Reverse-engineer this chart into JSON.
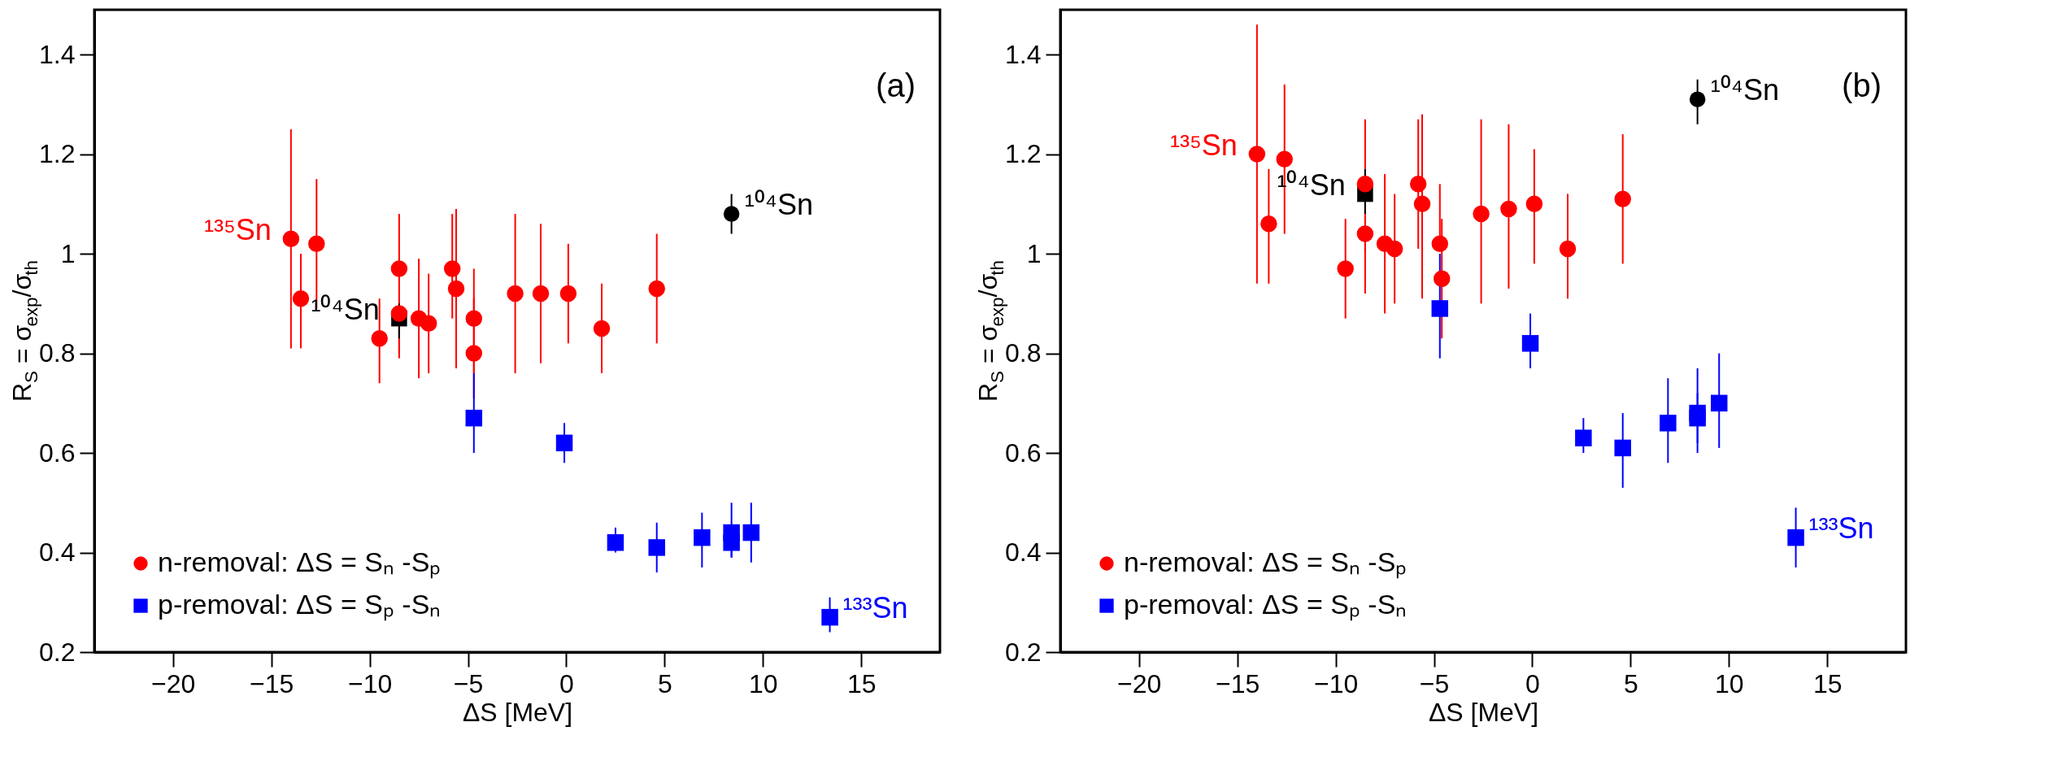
{
  "chart_data": [
    {
      "type": "scatter",
      "xlabel": "ΔS [MeV]",
      "ylabel": "R$_{S}$ = σ$_{exp}$/σ$_{th}$",
      "xlim": [
        -24,
        19
      ],
      "ylim": [
        0.2,
        1.49
      ],
      "legend": "bottom left",
      "xticks": [
        -20,
        -15,
        -10,
        -5,
        0,
        5,
        10,
        15
      ],
      "yticks": [
        0.2,
        0.4,
        0.6,
        0.8,
        1,
        1.2,
        1.4
      ],
      "series": [
        {
          "name": "n-removal: ΔS = Sₙ -Sₚ",
          "color": "#ff0000",
          "marker": "circle",
          "x": [
            -14.0,
            -13.5,
            -12.7,
            -9.5,
            -8.5,
            -8.5,
            -7.5,
            -7.0,
            -5.8,
            -5.6,
            -4.7,
            -4.7,
            -2.6,
            -1.3,
            0.1,
            1.8,
            4.6
          ],
          "values": [
            1.03,
            0.91,
            1.02,
            0.83,
            0.97,
            0.88,
            0.87,
            0.86,
            0.97,
            0.93,
            0.87,
            0.8,
            0.92,
            0.92,
            0.92,
            0.85,
            0.93
          ],
          "errors": [
            [
              0.81,
              1.25
            ],
            [
              0.81,
              1.0
            ],
            [
              0.89,
              1.15
            ],
            [
              0.74,
              0.91
            ],
            [
              0.79,
              1.08
            ],
            [
              0.8,
              0.88
            ],
            [
              0.75,
              0.99
            ],
            [
              0.76,
              0.96
            ],
            [
              0.87,
              1.08
            ],
            [
              0.77,
              1.09
            ],
            [
              0.76,
              0.97
            ],
            [
              0.71,
              0.91
            ],
            [
              0.76,
              1.08
            ],
            [
              0.78,
              1.06
            ],
            [
              0.82,
              1.02
            ],
            [
              0.76,
              0.94
            ],
            [
              0.82,
              1.04
            ]
          ]
        },
        {
          "name": "p-removal: ΔS = Sₚ -Sₙ",
          "color": "#0000ff",
          "marker": "square",
          "x": [
            -4.7,
            -0.1,
            2.5,
            4.6,
            6.9,
            8.4,
            8.4,
            9.4,
            13.4
          ],
          "values": [
            0.67,
            0.62,
            0.42,
            0.41,
            0.43,
            0.44,
            0.42,
            0.44,
            0.27
          ],
          "errors": [
            [
              0.6,
              0.76
            ],
            [
              0.58,
              0.66
            ],
            [
              0.4,
              0.45
            ],
            [
              0.36,
              0.46
            ],
            [
              0.37,
              0.48
            ],
            [
              0.39,
              0.5
            ],
            [
              0.39,
              0.42
            ],
            [
              0.38,
              0.5
            ],
            [
              0.24,
              0.31
            ]
          ]
        },
        {
          "color": "#000000",
          "marker": "square",
          "x": [
            -8.5
          ],
          "values": [
            0.87
          ],
          "errors": [
            [
              0.83,
              0.9
            ]
          ]
        },
        {
          "color": "#000000",
          "marker": "circle",
          "x": [
            8.4
          ],
          "values": [
            1.08
          ],
          "errors": [
            [
              1.04,
              1.12
            ]
          ]
        }
      ],
      "annotations": [
        {
          "text": "¹³⁵Sn",
          "x": -14.0,
          "y": 1.03
        },
        {
          "text": "¹⁰⁴Sn",
          "x": -8.5,
          "y": 0.87
        },
        {
          "text": "¹⁰⁴Sn",
          "x": 8.4,
          "y": 1.08
        },
        {
          "text": "¹³³Sn",
          "x": 13.4,
          "y": 0.27
        },
        "(a)"
      ]
    },
    {
      "type": "scatter",
      "xlabel": "ΔS [MeV]",
      "ylabel": "R$_{S}$ = σ$_{exp}$/σ$_{th}$",
      "xlim": [
        -24,
        19
      ],
      "ylim": [
        0.2,
        1.49
      ],
      "legend": "bottom left",
      "xticks": [
        -20,
        -15,
        -10,
        -5,
        0,
        5,
        10,
        15
      ],
      "yticks": [
        0.2,
        0.4,
        0.6,
        0.8,
        1,
        1.2,
        1.4
      ],
      "series": [
        {
          "name": "n-removal: ΔS = Sₙ -Sₚ",
          "color": "#ff0000",
          "marker": "circle",
          "x": [
            -14.0,
            -13.4,
            -12.6,
            -9.5,
            -8.5,
            -8.5,
            -7.5,
            -7.0,
            -5.8,
            -5.6,
            -4.7,
            -4.6,
            -2.6,
            -1.2,
            0.1,
            1.8,
            4.6
          ],
          "values": [
            1.2,
            1.06,
            1.19,
            0.97,
            1.14,
            1.04,
            1.02,
            1.01,
            1.14,
            1.1,
            1.02,
            0.95,
            1.08,
            1.09,
            1.1,
            1.01,
            1.11
          ],
          "errors": [
            [
              0.94,
              1.46
            ],
            [
              0.94,
              1.17
            ],
            [
              1.04,
              1.34
            ],
            [
              0.87,
              1.07
            ],
            [
              1.0,
              1.27
            ],
            [
              0.92,
              1.04
            ],
            [
              0.88,
              1.16
            ],
            [
              0.9,
              1.12
            ],
            [
              1.01,
              1.27
            ],
            [
              0.91,
              1.28
            ],
            [
              1.02,
              1.14
            ],
            [
              0.83,
              1.07
            ],
            [
              0.9,
              1.27
            ],
            [
              0.93,
              1.26
            ],
            [
              0.98,
              1.21
            ],
            [
              0.91,
              1.12
            ],
            [
              0.98,
              1.24
            ]
          ]
        },
        {
          "name": "p-removal: ΔS = Sₚ -Sₙ",
          "color": "#0000ff",
          "marker": "square",
          "x": [
            -4.7,
            -0.1,
            2.6,
            4.6,
            6.9,
            8.4,
            8.4,
            9.5,
            13.4
          ],
          "values": [
            0.89,
            0.82,
            0.63,
            0.61,
            0.66,
            0.68,
            0.67,
            0.7,
            0.43
          ],
          "errors": [
            [
              0.79,
              1.0
            ],
            [
              0.77,
              0.88
            ],
            [
              0.6,
              0.67
            ],
            [
              0.53,
              0.68
            ],
            [
              0.58,
              0.75
            ],
            [
              0.62,
              0.77
            ],
            [
              0.6,
              0.72
            ],
            [
              0.61,
              0.8
            ],
            [
              0.37,
              0.49
            ]
          ]
        },
        {
          "color": "#000000",
          "marker": "square",
          "x": [
            -8.5
          ],
          "values": [
            1.12
          ],
          "errors": [
            [
              1.08,
              1.17
            ]
          ]
        },
        {
          "color": "#000000",
          "marker": "circle",
          "x": [
            8.4
          ],
          "values": [
            1.31
          ],
          "errors": [
            [
              1.26,
              1.35
            ]
          ]
        }
      ],
      "annotations": [
        {
          "text": "¹³⁵Sn",
          "x": -14.0,
          "y": 1.2
        },
        {
          "text": "¹⁰⁴Sn",
          "x": -8.5,
          "y": 1.12
        },
        {
          "text": "¹⁰⁴Sn",
          "x": 8.4,
          "y": 1.31
        },
        {
          "text": "¹³³Sn",
          "x": 13.4,
          "y": 0.43
        },
        "(b)"
      ]
    }
  ]
}
